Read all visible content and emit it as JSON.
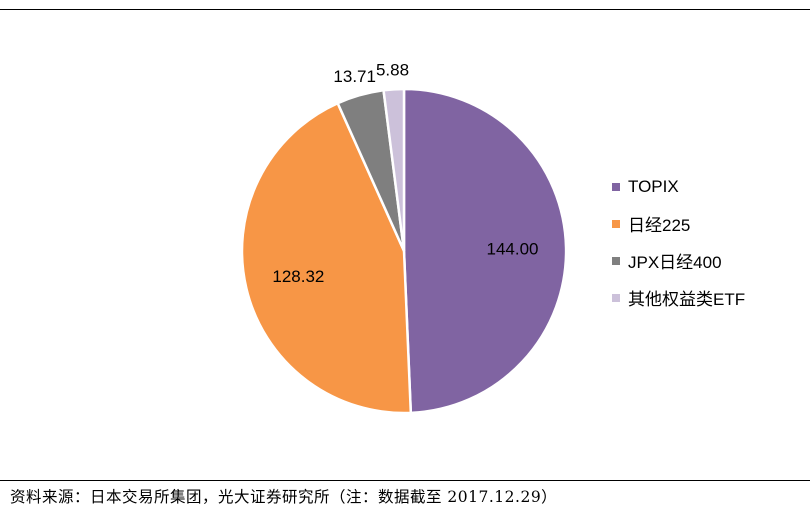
{
  "chart_data": {
    "type": "pie",
    "title": "",
    "categories": [
      "TOPIX",
      "日经225",
      "JPX日经400",
      "其他权益类ETF"
    ],
    "values": [
      144.0,
      128.32,
      13.71,
      5.88
    ],
    "value_labels": [
      "144.00",
      "128.32",
      "13.71",
      "5.88"
    ],
    "colors": [
      "#8064A2",
      "#F79646",
      "#7F7F7F",
      "#CCC1DA"
    ],
    "legend_position": "right"
  },
  "footer": {
    "source": "资料来源：日本交易所集团，光大证券研究所（注：数据截至 2017.12.29）"
  }
}
